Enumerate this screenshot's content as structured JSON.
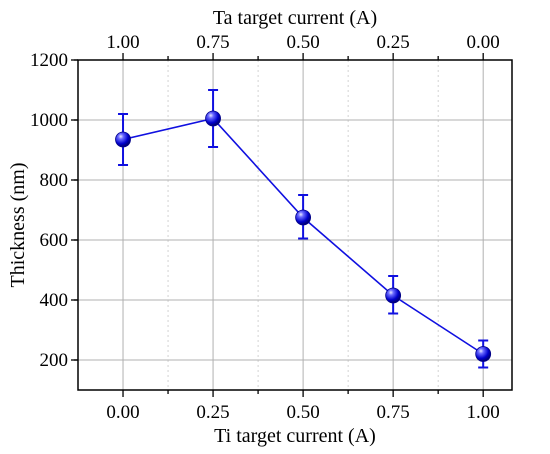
{
  "chart_data": {
    "type": "scatter",
    "title": "",
    "xlabel": "Ti target current (A)",
    "x2label": "Ta target current (A)",
    "ylabel": "Thickness (nm)",
    "xlim": [
      -0.125,
      1.08
    ],
    "ylim": [
      100,
      1200
    ],
    "x_ticks": [
      0.0,
      0.25,
      0.5,
      0.75,
      1.0
    ],
    "x_tick_labels": [
      "0.00",
      "0.25",
      "0.50",
      "0.75",
      "1.00"
    ],
    "x2_tick_labels": [
      "1.00",
      "0.75",
      "0.50",
      "0.25",
      "0.00"
    ],
    "y_ticks": [
      200,
      400,
      600,
      800,
      1000,
      1200
    ],
    "y_tick_labels": [
      "200",
      "400",
      "600",
      "800",
      "1000",
      "1200"
    ],
    "grid": true,
    "series": [
      {
        "x": [
          0.0,
          0.25,
          0.5,
          0.75,
          1.0
        ],
        "y": [
          935,
          1005,
          675,
          415,
          220
        ],
        "err_upper": [
          85,
          95,
          75,
          65,
          45
        ],
        "err_lower": [
          85,
          95,
          70,
          60,
          45
        ],
        "color": "#1010e0",
        "marker": "sphere"
      }
    ]
  }
}
